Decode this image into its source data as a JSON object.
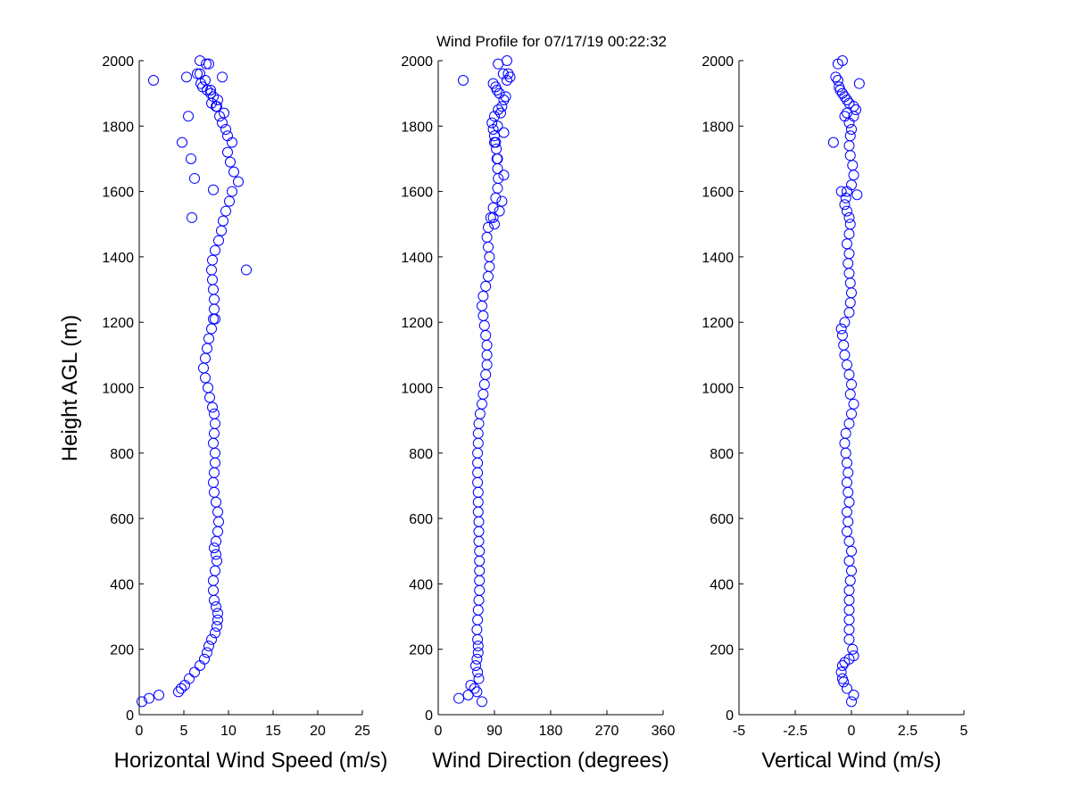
{
  "figure": {
    "title": "Wind Profile for  07/17/19 00:22:32",
    "ylabel": "Height AGL (m)",
    "marker_color": "#0000ff",
    "background_color": "#ffffff"
  },
  "chart_data": [
    {
      "type": "scatter",
      "xlabel": "Horizontal Wind Speed (m/s)",
      "ylabel": "Height AGL (m)",
      "xlim": [
        0,
        25
      ],
      "ylim": [
        0,
        2000
      ],
      "xticks": [
        "0",
        "5",
        "10",
        "15",
        "20",
        "25"
      ],
      "yticks": [
        "0",
        "200",
        "400",
        "600",
        "800",
        "1000",
        "1200",
        "1400",
        "1600",
        "1800",
        "2000"
      ],
      "marker": "open-circle",
      "grid": false,
      "x": [
        0.3,
        1.1,
        2.2,
        4.4,
        4.7,
        5.1,
        5.6,
        6.2,
        6.8,
        7.3,
        7.6,
        7.8,
        8.1,
        8.5,
        8.7,
        8.8,
        8.8,
        8.6,
        8.4,
        8.3,
        8.3,
        8.5,
        8.7,
        8.6,
        8.4,
        8.6,
        8.8,
        8.9,
        8.8,
        8.6,
        8.4,
        8.3,
        8.4,
        8.5,
        8.5,
        8.3,
        8.4,
        8.5,
        8.4,
        8.2,
        7.9,
        7.7,
        7.4,
        7.2,
        7.4,
        7.6,
        7.8,
        8.1,
        8.3,
        8.4,
        8.4,
        8.3,
        8.2,
        8.1,
        8.2,
        8.5,
        8.9,
        9.2,
        9.4,
        9.7,
        10.1,
        10.4,
        11.1,
        10.6,
        10.2,
        9.9,
        10.4,
        9.9,
        9.7,
        9.3,
        9.0,
        9.5,
        8.6,
        8.1,
        8.8,
        8.3,
        8.0,
        7.6,
        7.1,
        6.9,
        7.4,
        5.3,
        6.8,
        7.8,
        6.8,
        8.3,
        6.2,
        5.9,
        5.5,
        4.8,
        5.8,
        12.0,
        8.5,
        1.6,
        9.3,
        7.5,
        6.5,
        8.0,
        8.7
      ],
      "y": [
        40,
        50,
        60,
        70,
        80,
        90,
        110,
        130,
        150,
        170,
        190,
        210,
        230,
        250,
        270,
        290,
        310,
        330,
        350,
        380,
        410,
        440,
        470,
        490,
        510,
        530,
        560,
        590,
        620,
        650,
        680,
        710,
        740,
        770,
        800,
        830,
        860,
        890,
        920,
        940,
        970,
        1000,
        1030,
        1060,
        1090,
        1120,
        1150,
        1180,
        1210,
        1240,
        1270,
        1300,
        1330,
        1360,
        1390,
        1420,
        1450,
        1480,
        1510,
        1540,
        1570,
        1600,
        1630,
        1660,
        1690,
        1720,
        1750,
        1770,
        1790,
        1810,
        1830,
        1840,
        1860,
        1870,
        1880,
        1890,
        1900,
        1910,
        1920,
        1930,
        1940,
        1950,
        1960,
        1990,
        2000,
        1605,
        1640,
        1520,
        1830,
        1750,
        1700,
        1360,
        1210,
        1940,
        1950,
        1990,
        1960,
        1910,
        1860
      ]
    },
    {
      "type": "scatter",
      "xlabel": "Wind Direction (degrees)",
      "ylabel": "",
      "xlim": [
        0,
        360
      ],
      "ylim": [
        0,
        2000
      ],
      "xticks": [
        "0",
        "90",
        "180",
        "270",
        "360"
      ],
      "yticks": [
        "0",
        "200",
        "400",
        "600",
        "800",
        "1000",
        "1200",
        "1400",
        "1600",
        "1800",
        "2000"
      ],
      "marker": "open-circle",
      "grid": false,
      "x": [
        33,
        48,
        62,
        58,
        52,
        65,
        63,
        60,
        62,
        64,
        64,
        63,
        62,
        63,
        64,
        65,
        66,
        66,
        66,
        66,
        66,
        65,
        65,
        65,
        64,
        64,
        64,
        63,
        63,
        63,
        63,
        64,
        64,
        65,
        67,
        70,
        72,
        74,
        76,
        78,
        78,
        78,
        76,
        74,
        72,
        70,
        72,
        76,
        80,
        82,
        82,
        80,
        78,
        80,
        84,
        88,
        92,
        95,
        96,
        95,
        94,
        93,
        92,
        90,
        88,
        86,
        90,
        100,
        96,
        102,
        105,
        108,
        98,
        94,
        92,
        88,
        110,
        115,
        104,
        96,
        40,
        110,
        112,
        105,
        95,
        90,
        88,
        98,
        102,
        70,
        90,
        95,
        105
      ],
      "y": [
        50,
        60,
        70,
        80,
        90,
        110,
        130,
        150,
        170,
        190,
        210,
        230,
        260,
        290,
        320,
        350,
        380,
        410,
        440,
        470,
        500,
        530,
        560,
        590,
        620,
        650,
        680,
        710,
        740,
        770,
        800,
        830,
        860,
        890,
        920,
        950,
        980,
        1010,
        1040,
        1070,
        1100,
        1130,
        1160,
        1190,
        1220,
        1250,
        1280,
        1310,
        1340,
        1370,
        1400,
        1430,
        1460,
        1490,
        1520,
        1550,
        1580,
        1610,
        1640,
        1670,
        1700,
        1730,
        1750,
        1770,
        1790,
        1810,
        1830,
        1840,
        1850,
        1860,
        1880,
        1890,
        1900,
        1910,
        1920,
        1930,
        1940,
        1950,
        1960,
        1990,
        1940,
        2000,
        1960,
        1780,
        1800,
        1500,
        1520,
        1540,
        1570,
        40,
        1750,
        1700,
        1650
      ],
      "series_note_unused": ""
    },
    {
      "type": "scatter",
      "xlabel": "Vertical Wind (m/s)",
      "ylabel": "",
      "xlim": [
        -5,
        5
      ],
      "ylim": [
        0,
        2000
      ],
      "xticks": [
        "-5",
        "-2.5",
        "0",
        "2.5",
        "5"
      ],
      "yticks": [
        "0",
        "200",
        "400",
        "600",
        "800",
        "1000",
        "1200",
        "1400",
        "1600",
        "1800",
        "2000"
      ],
      "marker": "open-circle",
      "grid": false,
      "x": [
        0.0,
        0.1,
        -0.2,
        -0.35,
        -0.4,
        -0.45,
        -0.4,
        -0.3,
        -0.1,
        0.1,
        0.05,
        -0.1,
        -0.1,
        -0.1,
        -0.1,
        -0.1,
        -0.1,
        -0.05,
        0.0,
        -0.1,
        0.0,
        -0.1,
        -0.2,
        -0.15,
        -0.2,
        -0.1,
        -0.15,
        -0.2,
        -0.15,
        -0.2,
        -0.25,
        -0.3,
        -0.25,
        -0.1,
        0.0,
        0.1,
        -0.05,
        0.0,
        -0.1,
        -0.2,
        -0.3,
        -0.35,
        -0.4,
        -0.45,
        -0.3,
        -0.1,
        -0.05,
        0.0,
        -0.05,
        -0.1,
        -0.15,
        -0.1,
        -0.2,
        -0.1,
        -0.05,
        -0.1,
        -0.2,
        -0.3,
        -0.25,
        -0.2,
        0.0,
        0.1,
        0.05,
        -0.05,
        -0.1,
        -0.05,
        0.0,
        -0.1,
        -0.3,
        -0.2,
        0.2,
        0.1,
        -0.1,
        -0.2,
        -0.3,
        -0.4,
        -0.5,
        -0.55,
        0.35,
        -0.6,
        -0.7,
        -0.6,
        -0.4,
        -0.8,
        -0.45,
        0.1,
        0.25
      ],
      "y": [
        40,
        60,
        80,
        100,
        110,
        130,
        150,
        160,
        170,
        180,
        200,
        230,
        260,
        290,
        320,
        350,
        380,
        410,
        440,
        470,
        500,
        530,
        560,
        590,
        620,
        650,
        680,
        710,
        740,
        770,
        800,
        830,
        860,
        890,
        920,
        950,
        980,
        1010,
        1040,
        1070,
        1100,
        1130,
        1160,
        1180,
        1200,
        1230,
        1260,
        1290,
        1320,
        1350,
        1380,
        1410,
        1440,
        1470,
        1500,
        1520,
        1540,
        1560,
        1580,
        1600,
        1620,
        1650,
        1680,
        1710,
        1740,
        1770,
        1790,
        1810,
        1830,
        1840,
        1850,
        1860,
        1870,
        1880,
        1890,
        1900,
        1910,
        1920,
        1930,
        1940,
        1950,
        1990,
        2000,
        1750,
        1600,
        1830,
        1590
      ]
    }
  ]
}
